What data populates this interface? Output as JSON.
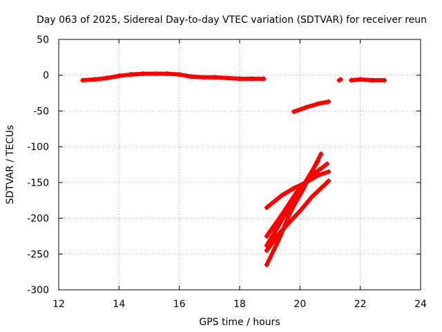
{
  "chart_data": {
    "type": "scatter",
    "title": "Day 063 of 2025, Sidereal Day-to-day VTEC variation (SDTVAR) for receiver reun",
    "xlabel": "GPS time / hours",
    "ylabel": "SDTVAR / TECUs",
    "xlim": [
      12,
      24
    ],
    "ylim": [
      -300,
      50
    ],
    "xticks": [
      12,
      14,
      16,
      18,
      20,
      22,
      24
    ],
    "yticks": [
      50,
      0,
      -50,
      -100,
      -150,
      -200,
      -250,
      -300
    ],
    "grid": true,
    "marker_color": "#ff0000",
    "series": [
      {
        "points": [
          [
            12.8,
            -7
          ],
          [
            13.2,
            -6
          ],
          [
            13.6,
            -4
          ],
          [
            14.0,
            -1
          ],
          [
            14.4,
            1
          ],
          [
            14.8,
            2
          ],
          [
            15.2,
            2
          ],
          [
            15.6,
            2
          ],
          [
            16.0,
            1
          ],
          [
            16.4,
            -2
          ],
          [
            16.8,
            -3
          ],
          [
            17.2,
            -3
          ],
          [
            17.6,
            -4
          ],
          [
            18.0,
            -5
          ],
          [
            18.4,
            -5
          ],
          [
            18.8,
            -5
          ]
        ]
      },
      {
        "points": [
          [
            21.3,
            -7
          ],
          [
            21.35,
            -6
          ]
        ]
      },
      {
        "points": [
          [
            21.7,
            -7
          ],
          [
            22.0,
            -6
          ],
          [
            22.4,
            -7
          ],
          [
            22.8,
            -7
          ]
        ]
      },
      {
        "points": [
          [
            19.8,
            -51
          ],
          [
            20.2,
            -45
          ],
          [
            20.6,
            -40
          ],
          [
            20.95,
            -37
          ]
        ]
      },
      {
        "points": [
          [
            18.9,
            -185
          ],
          [
            19.4,
            -168
          ],
          [
            19.8,
            -158
          ],
          [
            20.2,
            -150
          ],
          [
            20.6,
            -140
          ],
          [
            20.95,
            -135
          ]
        ]
      },
      {
        "points": [
          [
            18.9,
            -225
          ],
          [
            19.4,
            -195
          ],
          [
            19.9,
            -163
          ],
          [
            20.4,
            -140
          ],
          [
            20.9,
            -124
          ]
        ]
      },
      {
        "points": [
          [
            18.9,
            -265
          ],
          [
            19.3,
            -230
          ],
          [
            19.7,
            -190
          ],
          [
            20.1,
            -160
          ],
          [
            20.4,
            -135
          ],
          [
            20.7,
            -110
          ]
        ]
      },
      {
        "points": [
          [
            18.9,
            -245
          ],
          [
            19.3,
            -222
          ],
          [
            19.6,
            -208
          ],
          [
            20.0,
            -190
          ],
          [
            20.4,
            -170
          ],
          [
            20.95,
            -148
          ]
        ]
      },
      {
        "points": [
          [
            18.9,
            -238
          ],
          [
            19.3,
            -210
          ],
          [
            19.7,
            -180
          ],
          [
            20.2,
            -148
          ],
          [
            20.6,
            -120
          ]
        ]
      }
    ]
  }
}
